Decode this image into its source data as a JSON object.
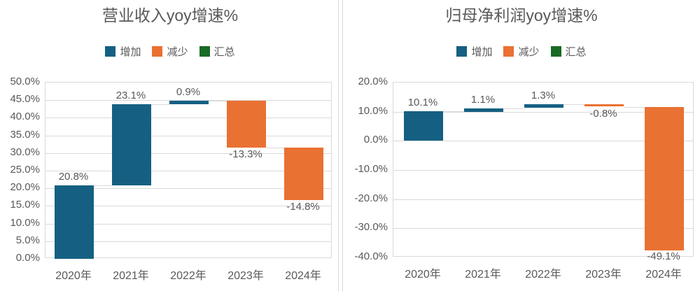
{
  "colors": {
    "increase": "#156082",
    "decrease": "#E97132",
    "total": "#196B24",
    "text": "#595959",
    "gridline": "#D9D9D9",
    "connector": "#D9D9D9"
  },
  "chart_data": [
    {
      "type": "bar",
      "subtype": "waterfall",
      "title": "营业收入yoy增速%",
      "legend": [
        {
          "label": "增加",
          "role": "increase"
        },
        {
          "label": "减少",
          "role": "decrease"
        },
        {
          "label": "汇总",
          "role": "total"
        }
      ],
      "legend_position": "top",
      "categories": [
        "2020年",
        "2021年",
        "2022年",
        "2023年",
        "2024年"
      ],
      "values": [
        20.8,
        23.1,
        0.9,
        -13.3,
        -14.8
      ],
      "data_labels": [
        "20.8%",
        "23.1%",
        "0.9%",
        "-13.3%",
        "-14.8%"
      ],
      "cumulative": [
        20.8,
        43.9,
        44.8,
        31.5,
        16.7
      ],
      "ylim": [
        0,
        50
      ],
      "ytick_values": [
        50,
        45,
        40,
        35,
        30,
        25,
        20,
        15,
        10,
        5,
        0
      ],
      "ytick_labels": [
        "50.0%",
        "45.0%",
        "40.0%",
        "35.0%",
        "30.0%",
        "25.0%",
        "20.0%",
        "15.0%",
        "10.0%",
        "5.0%",
        "0.0%"
      ],
      "grid": true
    },
    {
      "type": "bar",
      "subtype": "waterfall",
      "title": "归母净利润yoy增速%",
      "legend": [
        {
          "label": "增加",
          "role": "increase"
        },
        {
          "label": "减少",
          "role": "decrease"
        },
        {
          "label": "汇总",
          "role": "total"
        }
      ],
      "legend_position": "top",
      "categories": [
        "2020年",
        "2021年",
        "2022年",
        "2023年",
        "2024年"
      ],
      "values": [
        10.1,
        1.1,
        1.3,
        -0.8,
        -49.1
      ],
      "data_labels": [
        "10.1%",
        "1.1%",
        "1.3%",
        "-0.8%",
        "-49.1%"
      ],
      "cumulative": [
        10.1,
        11.2,
        12.5,
        11.7,
        -37.4
      ],
      "ylim": [
        -40,
        20
      ],
      "ytick_values": [
        20,
        10,
        0,
        -10,
        -20,
        -30,
        -40
      ],
      "ytick_labels": [
        "20.0%",
        "10.0%",
        "0.0%",
        "-10.0%",
        "-20.0%",
        "-30.0%",
        "-40.0%"
      ],
      "grid": true
    }
  ]
}
